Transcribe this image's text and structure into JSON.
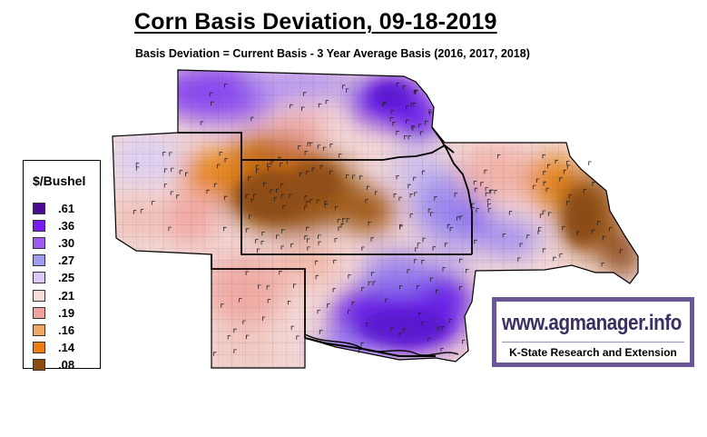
{
  "title": "Corn Basis Deviation, 09-18-2019",
  "subtitle": "Basis Deviation = Current Basis - 3 Year Average Basis (2016, 2017, 2018)",
  "legend": {
    "title": "$/Bushel",
    "items": [
      {
        "label": ".61",
        "color": "#4b0a8f"
      },
      {
        "label": ".36",
        "color": "#7a1cf0"
      },
      {
        "label": ".30",
        "color": "#9e5cf0"
      },
      {
        "label": ".27",
        "color": "#9e9cf0"
      },
      {
        "label": ".25",
        "color": "#dcc8f4"
      },
      {
        "label": ".21",
        "color": "#f5dcd6"
      },
      {
        "label": ".19",
        "color": "#f2a29e"
      },
      {
        "label": ".16",
        "color": "#f0a860"
      },
      {
        "label": ".14",
        "color": "#ee7e10"
      },
      {
        "label": ".08",
        "color": "#8a4a12"
      }
    ]
  },
  "logo": {
    "url_text": "www.agmanager.info",
    "tagline": "K-State Research and Extension",
    "border_color": "#6a5896"
  },
  "map": {
    "colors": {
      "deep_purple": "#5a0fbf",
      "purple": "#7a2af0",
      "lavender": "#a28cf0",
      "light_lavender": "#d8ccf2",
      "pale": "#f5dcd8",
      "pink": "#f0a8a4",
      "light_orange": "#f0b27a",
      "orange": "#e8861e",
      "brown": "#9a5614"
    }
  }
}
